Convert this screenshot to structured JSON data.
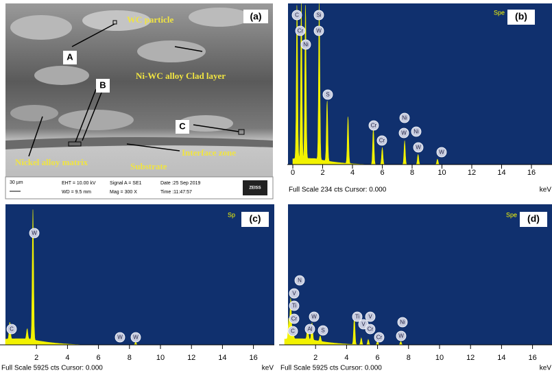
{
  "sem": {
    "label": "(a)",
    "annotations": [
      "WC particle",
      "Ni-WC alloy Clad layer",
      "A",
      "B",
      "C",
      "Nickel alloy matrix",
      "Substrate",
      "Interface zone"
    ],
    "info": [
      "30 µm",
      "EHT = 10.00 kV",
      "WD = 9.5 mm",
      "Signal A = SE1",
      "Mag =   300 X",
      "Date :25 Sep 2019",
      "Time :11:47:57",
      "ZEISS"
    ]
  },
  "spectra": [
    {
      "label": "(b)",
      "corner": "Spe",
      "unit": "keV",
      "footer": "Full Scale 234 cts Cursor: 0.000",
      "ticks": [
        0,
        2,
        4,
        6,
        8,
        10,
        12,
        14,
        16
      ],
      "tags": [
        "C",
        "Cr",
        "Ni",
        "Si",
        "W",
        "S",
        "Cr",
        "Cr",
        "Ni",
        "W",
        "Ni",
        "W",
        "W"
      ]
    },
    {
      "label": "(c)",
      "corner": "Sp",
      "unit": "keV",
      "footer": "Full Scale 5925 cts Cursor: 0.000",
      "ticks": [
        2,
        4,
        6,
        8,
        10,
        12,
        14,
        16
      ],
      "tags": [
        "C",
        "W",
        "W",
        "W"
      ]
    },
    {
      "label": "(d)",
      "corner": "Spe",
      "unit": "keV",
      "footer": "Full Scale 5925 cts Cursor: 0.000",
      "ticks": [
        2,
        4,
        6,
        8,
        10,
        12,
        14,
        16
      ],
      "tags": [
        "N",
        "V",
        "Ti",
        "Cr",
        "C",
        "Al",
        "W",
        "S",
        "Ti",
        "V",
        "V",
        "Cr",
        "Cr",
        "Ni",
        "W"
      ]
    }
  ]
}
